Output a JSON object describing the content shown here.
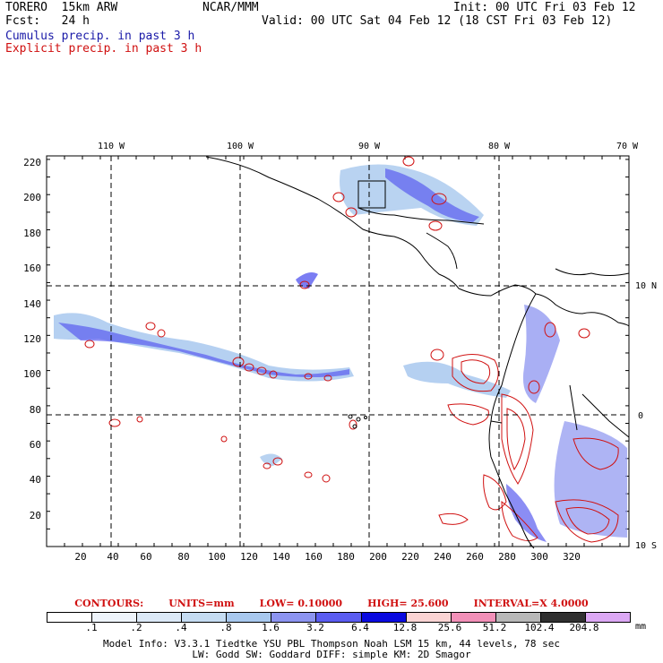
{
  "header": {
    "model": "TORERO  15km ARW",
    "org": "NCAR/MMM",
    "init": "Init: 00 UTC Fri 03 Feb 12",
    "fcst": "Fcst:   24 h",
    "valid": "Valid: 00 UTC Sat 04 Feb 12 (18 CST Fri 03 Feb 12)",
    "cumulus": "Cumulus precip. in past 3 h",
    "explicit": "Explicit precip. in past 3 h"
  },
  "map": {
    "lon_labels": [
      "110 W",
      "100 W",
      "90 W",
      "80 W",
      "70 W"
    ],
    "lat_labels": [
      "10 N",
      "0",
      "10 S"
    ],
    "y_ticks": [
      "220",
      "200",
      "180",
      "160",
      "140",
      "120",
      "100",
      "80",
      "60",
      "40",
      "20"
    ],
    "x_ticks": [
      "20",
      "40",
      "60",
      "80",
      "100",
      "120",
      "140",
      "160",
      "180",
      "200",
      "220",
      "240",
      "260",
      "280",
      "300",
      "320"
    ]
  },
  "contours": {
    "title": "CONTOURS:",
    "units": "UNITS=mm",
    "low": "LOW= 0.10000",
    "high": "HIGH=  25.600",
    "interval": "INTERVAL=X  4.0000"
  },
  "legend": {
    "labels": [
      ".1",
      ".2",
      ".4",
      ".8",
      "1.6",
      "3.2",
      "6.4",
      "12.8",
      "25.6",
      "51.2",
      "102.4",
      "204.8"
    ],
    "unit": "mm",
    "colors": [
      "#ffffff",
      "#eef4fb",
      "#dce9f7",
      "#c5dcf2",
      "#a8c8ee",
      "#8c94f0",
      "#5a5cf0",
      "#0a0ae0",
      "#fad4d4",
      "#f290b8",
      "#b8b8b8",
      "#303030",
      "#dca8f4"
    ]
  },
  "info": {
    "line1": "Model Info: V3.3.1   Tiedtke YSU PBL  Thompson    Noah LSM  15 km,   44 levels,   78 sec",
    "line2": "LW: Godd SW: Goddard DIFF: simple KM: 2D Smagor"
  }
}
